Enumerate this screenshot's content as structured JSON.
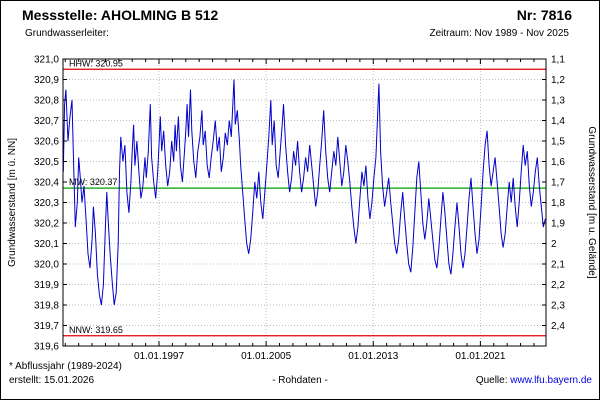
{
  "header": {
    "station": "Messstelle: AHOLMING B 512",
    "number": "Nr: 7816",
    "aquifer": "Grundwasserleiter:",
    "period": "Zeitraum: Nov 1989 - Nov 2025"
  },
  "footer": {
    "note": "* Abflussjahr (1989-2024)",
    "created": "erstellt: 15.01.2026",
    "center": "- Rohdaten -",
    "source_label": "Quelle: ",
    "source_link": "www.lfu.bayern.de"
  },
  "chart_data": {
    "type": "line",
    "title": "",
    "ylabel_left": "Grundwasserstand [m ü. NN]",
    "ylabel_right": "Grundwasserstand [m u. Gelände]",
    "ylim_left": [
      319.6,
      321.0
    ],
    "ytick_step": 0.1,
    "yticks_left": [
      "321,0",
      "320,9",
      "320,8",
      "320,7",
      "320,6",
      "320,5",
      "320,4",
      "320,3",
      "320,2",
      "320,1",
      "320,0",
      "319,9",
      "319,8",
      "319,7",
      "319,6"
    ],
    "yticks_right": [
      "1,1",
      "1,2",
      "1,3",
      "1,4",
      "1,5",
      "1,6",
      "1,7",
      "1,8",
      "1,9",
      "2",
      "2,1",
      "2,2",
      "2,3",
      "2,4"
    ],
    "yticks_right_start": 1.1,
    "ground_elevation": 322.1,
    "xlim_years": [
      1989.83,
      2025.9
    ],
    "xticks": [
      {
        "year": 1997,
        "label": "01.01.1997"
      },
      {
        "year": 2005,
        "label": "01.01.2005"
      },
      {
        "year": 2013,
        "label": "01.01.2013"
      },
      {
        "year": 2021,
        "label": "01.01.2021"
      }
    ],
    "minor_xticks_every_years": 1,
    "grid": true,
    "legend": "none",
    "reference_lines": [
      {
        "id": "hhw",
        "label": "HHW: 320.95",
        "value": 320.95,
        "color": "#e00000"
      },
      {
        "id": "mw",
        "label": "MW: 320.37",
        "value": 320.37,
        "color": "#00a000"
      },
      {
        "id": "nnw",
        "label": "NNW: 319.65",
        "value": 319.65,
        "color": "#e00000"
      }
    ],
    "colors": {
      "series": "#0000cc",
      "grid": "#bfbfbf",
      "axis": "#000000",
      "link": "#0000dd"
    },
    "series": [
      {
        "name": "Grundwasserstand Rohdaten",
        "color": "#0000cc",
        "points": [
          [
            1989.85,
            320.45
          ],
          [
            1989.95,
            320.78
          ],
          [
            1990.05,
            320.85
          ],
          [
            1990.2,
            320.6
          ],
          [
            1990.35,
            320.72
          ],
          [
            1990.5,
            320.8
          ],
          [
            1990.6,
            320.55
          ],
          [
            1990.75,
            320.18
          ],
          [
            1990.9,
            320.3
          ],
          [
            1991.0,
            320.52
          ],
          [
            1991.1,
            320.44
          ],
          [
            1991.25,
            320.3
          ],
          [
            1991.4,
            320.38
          ],
          [
            1991.55,
            320.22
          ],
          [
            1991.7,
            320.05
          ],
          [
            1991.85,
            319.98
          ],
          [
            1992.0,
            320.12
          ],
          [
            1992.1,
            320.28
          ],
          [
            1992.25,
            320.15
          ],
          [
            1992.4,
            319.95
          ],
          [
            1992.55,
            319.85
          ],
          [
            1992.7,
            319.8
          ],
          [
            1992.85,
            319.9
          ],
          [
            1993.0,
            320.18
          ],
          [
            1993.1,
            320.35
          ],
          [
            1993.2,
            320.22
          ],
          [
            1993.35,
            320.05
          ],
          [
            1993.5,
            319.92
          ],
          [
            1993.65,
            319.8
          ],
          [
            1993.8,
            319.86
          ],
          [
            1993.95,
            320.1
          ],
          [
            1994.05,
            320.45
          ],
          [
            1994.15,
            320.62
          ],
          [
            1994.3,
            320.5
          ],
          [
            1994.45,
            320.58
          ],
          [
            1994.6,
            320.35
          ],
          [
            1994.75,
            320.25
          ],
          [
            1994.9,
            320.4
          ],
          [
            1995.0,
            320.55
          ],
          [
            1995.1,
            320.68
          ],
          [
            1995.2,
            320.48
          ],
          [
            1995.35,
            320.6
          ],
          [
            1995.5,
            320.45
          ],
          [
            1995.65,
            320.32
          ],
          [
            1995.8,
            320.38
          ],
          [
            1995.95,
            320.52
          ],
          [
            1996.05,
            320.42
          ],
          [
            1996.2,
            320.55
          ],
          [
            1996.35,
            320.78
          ],
          [
            1996.45,
            320.52
          ],
          [
            1996.6,
            320.4
          ],
          [
            1996.75,
            320.32
          ],
          [
            1996.9,
            320.45
          ],
          [
            1997.0,
            320.58
          ],
          [
            1997.1,
            320.72
          ],
          [
            1997.2,
            320.55
          ],
          [
            1997.35,
            320.65
          ],
          [
            1997.5,
            320.48
          ],
          [
            1997.65,
            320.38
          ],
          [
            1997.8,
            320.45
          ],
          [
            1997.95,
            320.6
          ],
          [
            1998.1,
            320.5
          ],
          [
            1998.2,
            320.68
          ],
          [
            1998.3,
            320.55
          ],
          [
            1998.45,
            320.72
          ],
          [
            1998.6,
            320.48
          ],
          [
            1998.75,
            320.4
          ],
          [
            1998.9,
            320.55
          ],
          [
            1999.0,
            320.65
          ],
          [
            1999.1,
            320.78
          ],
          [
            1999.2,
            320.62
          ],
          [
            1999.35,
            320.85
          ],
          [
            1999.45,
            320.65
          ],
          [
            1999.6,
            320.5
          ],
          [
            1999.75,
            320.42
          ],
          [
            1999.9,
            320.55
          ],
          [
            2000.05,
            320.62
          ],
          [
            2000.2,
            320.75
          ],
          [
            2000.3,
            320.58
          ],
          [
            2000.45,
            320.65
          ],
          [
            2000.6,
            320.48
          ],
          [
            2000.75,
            320.42
          ],
          [
            2000.9,
            320.52
          ],
          [
            2001.05,
            320.6
          ],
          [
            2001.2,
            320.7
          ],
          [
            2001.35,
            320.55
          ],
          [
            2001.5,
            320.62
          ],
          [
            2001.65,
            320.45
          ],
          [
            2001.8,
            320.52
          ],
          [
            2001.95,
            320.64
          ],
          [
            2002.1,
            320.58
          ],
          [
            2002.25,
            320.7
          ],
          [
            2002.4,
            320.62
          ],
          [
            2002.6,
            320.9
          ],
          [
            2002.7,
            320.68
          ],
          [
            2002.85,
            320.75
          ],
          [
            2003.0,
            320.6
          ],
          [
            2003.1,
            320.48
          ],
          [
            2003.25,
            320.35
          ],
          [
            2003.4,
            320.22
          ],
          [
            2003.55,
            320.1
          ],
          [
            2003.7,
            320.05
          ],
          [
            2003.85,
            320.12
          ],
          [
            2004.0,
            320.25
          ],
          [
            2004.15,
            320.4
          ],
          [
            2004.3,
            320.32
          ],
          [
            2004.45,
            320.45
          ],
          [
            2004.6,
            320.3
          ],
          [
            2004.75,
            320.22
          ],
          [
            2004.9,
            320.35
          ],
          [
            2005.05,
            320.48
          ],
          [
            2005.2,
            320.62
          ],
          [
            2005.35,
            320.8
          ],
          [
            2005.45,
            320.58
          ],
          [
            2005.6,
            320.7
          ],
          [
            2005.75,
            320.48
          ],
          [
            2005.9,
            320.42
          ],
          [
            2006.05,
            320.55
          ],
          [
            2006.2,
            320.68
          ],
          [
            2006.3,
            320.78
          ],
          [
            2006.45,
            320.58
          ],
          [
            2006.6,
            320.45
          ],
          [
            2006.75,
            320.35
          ],
          [
            2006.9,
            320.42
          ],
          [
            2007.05,
            320.55
          ],
          [
            2007.2,
            320.48
          ],
          [
            2007.35,
            320.6
          ],
          [
            2007.5,
            320.45
          ],
          [
            2007.65,
            320.35
          ],
          [
            2007.8,
            320.42
          ],
          [
            2007.95,
            320.52
          ],
          [
            2008.1,
            320.45
          ],
          [
            2008.25,
            320.58
          ],
          [
            2008.4,
            320.48
          ],
          [
            2008.55,
            320.38
          ],
          [
            2008.7,
            320.28
          ],
          [
            2008.85,
            320.35
          ],
          [
            2009.0,
            320.48
          ],
          [
            2009.15,
            320.6
          ],
          [
            2009.3,
            320.75
          ],
          [
            2009.45,
            320.55
          ],
          [
            2009.6,
            320.42
          ],
          [
            2009.75,
            320.35
          ],
          [
            2009.9,
            320.45
          ],
          [
            2010.05,
            320.55
          ],
          [
            2010.2,
            320.48
          ],
          [
            2010.35,
            320.62
          ],
          [
            2010.5,
            320.5
          ],
          [
            2010.65,
            320.38
          ],
          [
            2010.8,
            320.45
          ],
          [
            2010.95,
            320.58
          ],
          [
            2011.1,
            320.5
          ],
          [
            2011.25,
            320.4
          ],
          [
            2011.4,
            320.28
          ],
          [
            2011.55,
            320.18
          ],
          [
            2011.7,
            320.1
          ],
          [
            2011.85,
            320.18
          ],
          [
            2012.0,
            320.32
          ],
          [
            2012.15,
            320.45
          ],
          [
            2012.3,
            320.38
          ],
          [
            2012.45,
            320.48
          ],
          [
            2012.6,
            320.32
          ],
          [
            2012.75,
            320.22
          ],
          [
            2012.9,
            320.3
          ],
          [
            2013.05,
            320.42
          ],
          [
            2013.2,
            320.52
          ],
          [
            2013.42,
            320.88
          ],
          [
            2013.55,
            320.55
          ],
          [
            2013.7,
            320.38
          ],
          [
            2013.85,
            320.28
          ],
          [
            2014.0,
            320.35
          ],
          [
            2014.15,
            320.42
          ],
          [
            2014.3,
            320.3
          ],
          [
            2014.45,
            320.2
          ],
          [
            2014.6,
            320.1
          ],
          [
            2014.75,
            320.05
          ],
          [
            2014.9,
            320.12
          ],
          [
            2015.05,
            320.25
          ],
          [
            2015.2,
            320.35
          ],
          [
            2015.35,
            320.22
          ],
          [
            2015.5,
            320.1
          ],
          [
            2015.65,
            320.0
          ],
          [
            2015.8,
            319.96
          ],
          [
            2015.95,
            320.08
          ],
          [
            2016.1,
            320.25
          ],
          [
            2016.25,
            320.42
          ],
          [
            2016.4,
            320.5
          ],
          [
            2016.55,
            320.35
          ],
          [
            2016.7,
            320.2
          ],
          [
            2016.85,
            320.12
          ],
          [
            2017.0,
            320.2
          ],
          [
            2017.15,
            320.32
          ],
          [
            2017.3,
            320.22
          ],
          [
            2017.45,
            320.12
          ],
          [
            2017.6,
            320.02
          ],
          [
            2017.75,
            319.98
          ],
          [
            2017.9,
            320.08
          ],
          [
            2018.05,
            320.22
          ],
          [
            2018.2,
            320.35
          ],
          [
            2018.35,
            320.25
          ],
          [
            2018.5,
            320.12
          ],
          [
            2018.65,
            320.0
          ],
          [
            2018.8,
            319.95
          ],
          [
            2018.95,
            320.05
          ],
          [
            2019.1,
            320.18
          ],
          [
            2019.25,
            320.3
          ],
          [
            2019.4,
            320.18
          ],
          [
            2019.55,
            320.05
          ],
          [
            2019.7,
            319.98
          ],
          [
            2019.85,
            320.05
          ],
          [
            2020.0,
            320.18
          ],
          [
            2020.15,
            320.32
          ],
          [
            2020.3,
            320.42
          ],
          [
            2020.45,
            320.28
          ],
          [
            2020.6,
            320.15
          ],
          [
            2020.75,
            320.05
          ],
          [
            2020.9,
            320.12
          ],
          [
            2021.05,
            320.28
          ],
          [
            2021.2,
            320.45
          ],
          [
            2021.35,
            320.58
          ],
          [
            2021.5,
            320.65
          ],
          [
            2021.65,
            320.48
          ],
          [
            2021.8,
            320.38
          ],
          [
            2021.95,
            320.45
          ],
          [
            2022.1,
            320.52
          ],
          [
            2022.25,
            320.4
          ],
          [
            2022.4,
            320.28
          ],
          [
            2022.55,
            320.15
          ],
          [
            2022.7,
            320.08
          ],
          [
            2022.85,
            320.15
          ],
          [
            2023.0,
            320.28
          ],
          [
            2023.15,
            320.4
          ],
          [
            2023.3,
            320.3
          ],
          [
            2023.45,
            320.42
          ],
          [
            2023.6,
            320.28
          ],
          [
            2023.75,
            320.18
          ],
          [
            2023.9,
            320.3
          ],
          [
            2024.05,
            320.45
          ],
          [
            2024.2,
            320.58
          ],
          [
            2024.35,
            320.48
          ],
          [
            2024.5,
            320.55
          ],
          [
            2024.65,
            320.38
          ],
          [
            2024.8,
            320.28
          ],
          [
            2024.95,
            320.35
          ],
          [
            2025.1,
            320.45
          ],
          [
            2025.25,
            320.52
          ],
          [
            2025.4,
            320.38
          ],
          [
            2025.55,
            320.28
          ],
          [
            2025.7,
            320.18
          ],
          [
            2025.85,
            320.22
          ]
        ]
      }
    ]
  }
}
